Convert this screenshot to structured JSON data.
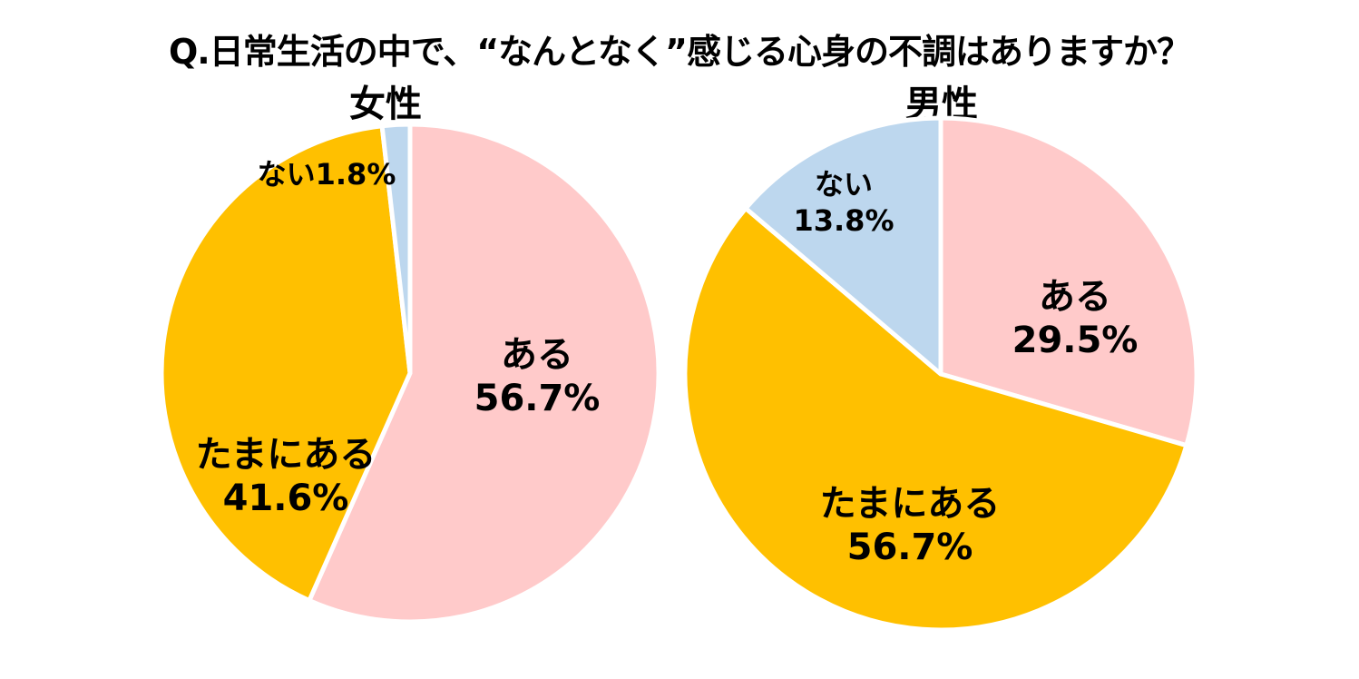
{
  "title": "Q.日常生活の中で、“なんとなく”感じる心身の不調はありますか？",
  "chart_data": [
    {
      "type": "pie",
      "title": "女性",
      "categories": [
        "ある",
        "たまにある",
        "ない"
      ],
      "values": [
        56.7,
        41.6,
        1.8
      ],
      "labels": [
        {
          "name": "ある",
          "value": "56.7%"
        },
        {
          "name": "たまにある",
          "value": "41.6%"
        },
        {
          "name": "ない",
          "value": "1.8%"
        }
      ],
      "colors": [
        "#FFCACA",
        "#FFC000",
        "#BDD7EE"
      ],
      "start": "top",
      "direction": "clockwise"
    },
    {
      "type": "pie",
      "title": "男性",
      "categories": [
        "ある",
        "たまにある",
        "ない"
      ],
      "values": [
        29.5,
        56.7,
        13.8
      ],
      "labels": [
        {
          "name": "ある",
          "value": "29.5%"
        },
        {
          "name": "たまにある",
          "value": "56.7%"
        },
        {
          "name": "ない",
          "value": "13.8%"
        }
      ],
      "colors": [
        "#FFCACA",
        "#FFC000",
        "#BDD7EE"
      ],
      "start": "top",
      "direction": "clockwise"
    }
  ]
}
